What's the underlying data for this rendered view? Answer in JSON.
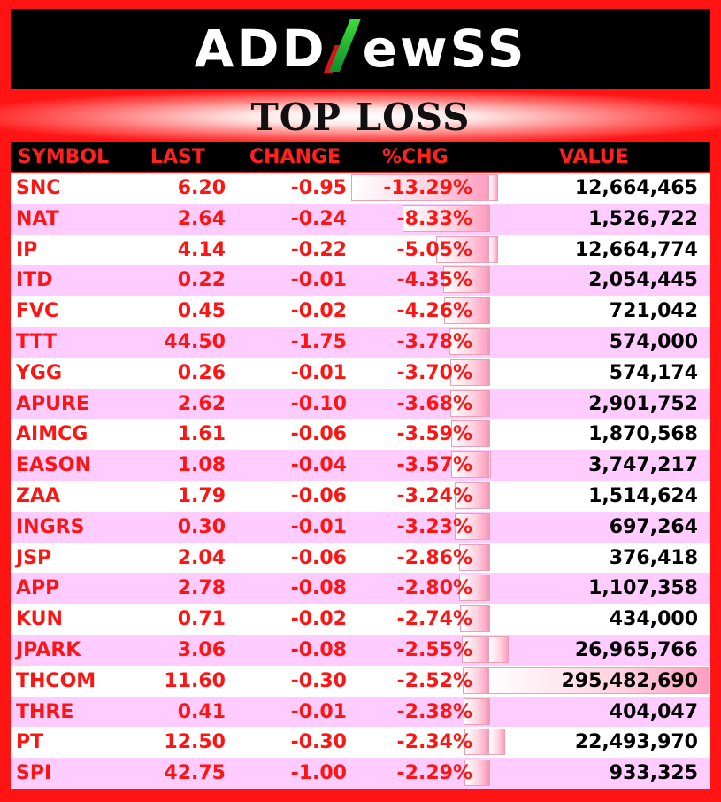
{
  "header": {
    "logo_pre": "ADD",
    "logo_post": "ewSS",
    "title": "TOP LOSS"
  },
  "colors": {
    "background": "#ff1414",
    "header_text": "#ff2020",
    "row_odd": "#ffffff",
    "row_even": "#ffccff",
    "value_text": "#000000"
  },
  "columns": [
    "SYMBOL",
    "LAST",
    "CHANGE",
    "%CHG",
    "VALUE"
  ],
  "rows": [
    {
      "symbol": "SNC",
      "last": "6.20",
      "change": "-0.95",
      "pchg": "-13.29%",
      "value": "12,664,465"
    },
    {
      "symbol": "NAT",
      "last": "2.64",
      "change": "-0.24",
      "pchg": "-8.33%",
      "value": "1,526,722"
    },
    {
      "symbol": "IP",
      "last": "4.14",
      "change": "-0.22",
      "pchg": "-5.05%",
      "value": "12,664,774"
    },
    {
      "symbol": "ITD",
      "last": "0.22",
      "change": "-0.01",
      "pchg": "-4.35%",
      "value": "2,054,445"
    },
    {
      "symbol": "FVC",
      "last": "0.45",
      "change": "-0.02",
      "pchg": "-4.26%",
      "value": "721,042"
    },
    {
      "symbol": "TTT",
      "last": "44.50",
      "change": "-1.75",
      "pchg": "-3.78%",
      "value": "574,000"
    },
    {
      "symbol": "YGG",
      "last": "0.26",
      "change": "-0.01",
      "pchg": "-3.70%",
      "value": "574,174"
    },
    {
      "symbol": "APURE",
      "last": "2.62",
      "change": "-0.10",
      "pchg": "-3.68%",
      "value": "2,901,752"
    },
    {
      "symbol": "AIMCG",
      "last": "1.61",
      "change": "-0.06",
      "pchg": "-3.59%",
      "value": "1,870,568"
    },
    {
      "symbol": "EASON",
      "last": "1.08",
      "change": "-0.04",
      "pchg": "-3.57%",
      "value": "3,747,217"
    },
    {
      "symbol": "ZAA",
      "last": "1.79",
      "change": "-0.06",
      "pchg": "-3.24%",
      "value": "1,514,624"
    },
    {
      "symbol": "INGRS",
      "last": "0.30",
      "change": "-0.01",
      "pchg": "-3.23%",
      "value": "697,264"
    },
    {
      "symbol": "JSP",
      "last": "2.04",
      "change": "-0.06",
      "pchg": "-2.86%",
      "value": "376,418"
    },
    {
      "symbol": "APP",
      "last": "2.78",
      "change": "-0.08",
      "pchg": "-2.80%",
      "value": "1,107,358"
    },
    {
      "symbol": "KUN",
      "last": "0.71",
      "change": "-0.02",
      "pchg": "-2.74%",
      "value": "434,000"
    },
    {
      "symbol": "JPARK",
      "last": "3.06",
      "change": "-0.08",
      "pchg": "-2.55%",
      "value": "26,965,766"
    },
    {
      "symbol": "THCOM",
      "last": "11.60",
      "change": "-0.30",
      "pchg": "-2.52%",
      "value": "295,482,690"
    },
    {
      "symbol": "THRE",
      "last": "0.41",
      "change": "-0.01",
      "pchg": "-2.38%",
      "value": "404,047"
    },
    {
      "symbol": "PT",
      "last": "12.50",
      "change": "-0.30",
      "pchg": "-2.34%",
      "value": "22,493,970"
    },
    {
      "symbol": "SPI",
      "last": "42.75",
      "change": "-1.00",
      "pchg": "-2.29%",
      "value": "933,325"
    }
  ]
}
